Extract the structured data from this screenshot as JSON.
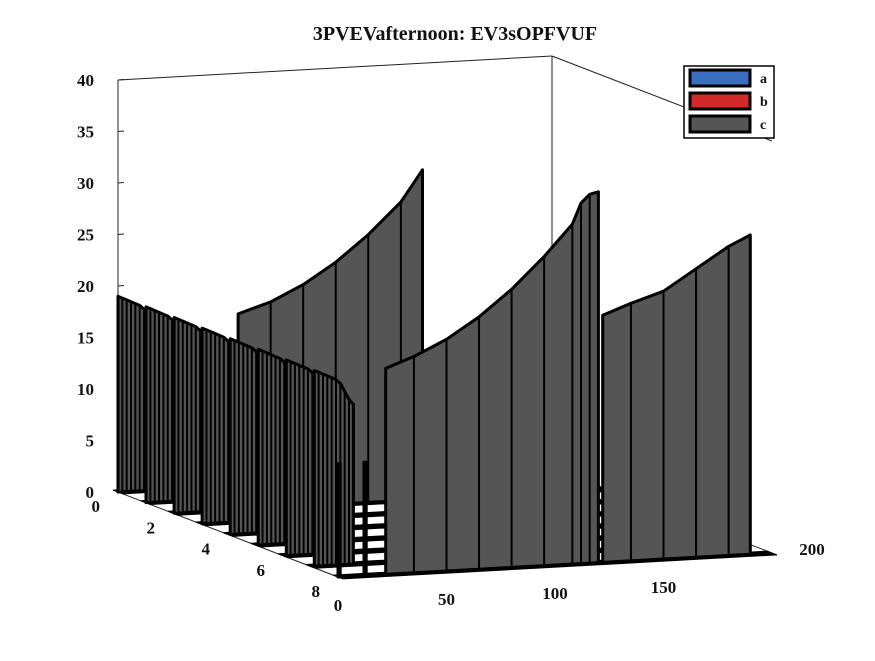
{
  "colors": {
    "a": "#3a6fc0",
    "b": "#d22a2a",
    "c": "#555555",
    "edge": "#000000"
  },
  "chart_data": {
    "type": "3d-ribbon",
    "title": "3PVEVafternoon: EV3sOPFVUF",
    "xlabel": "",
    "ylabel": "",
    "zlabel": "",
    "xlim": [
      0,
      200
    ],
    "ylim": [
      0,
      8
    ],
    "zlim": [
      0,
      40
    ],
    "x_ticks": [
      "0",
      "50",
      "100",
      "150",
      "200"
    ],
    "y_ticks": [
      "0",
      "2",
      "4",
      "6",
      "8"
    ],
    "z_ticks": [
      "0",
      "5",
      "10",
      "15",
      "20",
      "25",
      "30",
      "35",
      "40"
    ],
    "legend": {
      "position": "top-right",
      "entries": [
        "a",
        "b",
        "c"
      ]
    },
    "grid": false,
    "series": [
      {
        "name": "a",
        "color": "#3a6fc0",
        "rows": [
          8
        ],
        "x": [
          0,
          1
        ],
        "z": [
          11,
          11
        ]
      },
      {
        "name": "b",
        "color": "#d22a2a",
        "rows": [
          8
        ],
        "x": [
          12,
          13
        ],
        "z": [
          11,
          11
        ]
      },
      {
        "name": "c",
        "color": "#555555",
        "rows": [
          0,
          1,
          2,
          3,
          4,
          5,
          6,
          7
        ],
        "x": [
          0,
          2,
          4,
          6,
          8,
          10,
          12,
          14,
          16,
          18
        ],
        "z": [
          19,
          18.8,
          18.6,
          18.4,
          18.2,
          18,
          17.6,
          16.8,
          16,
          15.5
        ],
        "extra_ribbons": [
          {
            "row": 8,
            "x": [
              22,
              35,
              50,
              65,
              80,
              95,
              108,
              112,
              116,
              120
            ],
            "z": [
              20,
              21,
              22.5,
              24.5,
              27,
              30,
              33,
              35,
              35.8,
              36
            ]
          },
          {
            "row": 2,
            "x": [
              30,
              45,
              60,
              75,
              90,
              105,
              115
            ],
            "z": [
              19,
              20,
              21.5,
              23.5,
              26,
              29,
              32
            ]
          },
          {
            "row": 8,
            "x": [
              122,
              135,
              150,
              165,
              180,
              190
            ],
            "z": [
              24,
              25,
              26,
              28,
              30,
              31
            ]
          }
        ]
      }
    ]
  }
}
